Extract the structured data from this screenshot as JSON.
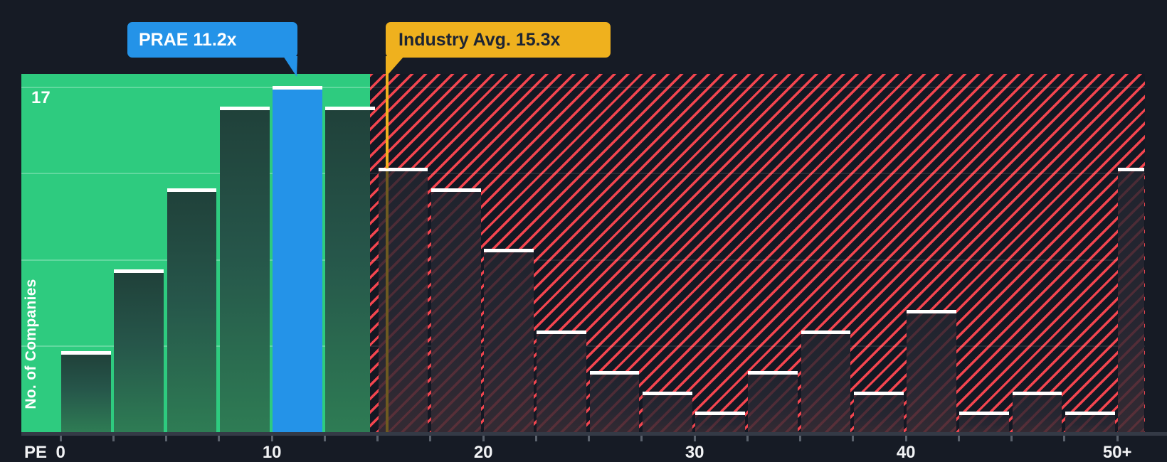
{
  "callouts": {
    "company_label": "PRAE 11.2x",
    "industry_label": "Industry Avg. 15.3x"
  },
  "y_axis": {
    "title": "No. of Companies",
    "max_tick_label": "17"
  },
  "x_axis": {
    "unit_label": "PE",
    "tick_labels": [
      "0",
      "10",
      "20",
      "30",
      "40",
      "50+"
    ]
  },
  "chart_data": {
    "type": "bar",
    "subtype": "histogram",
    "bin_width": 2.5,
    "bin_start": 0,
    "categories": [
      "0-2.5",
      "2.5-5",
      "5-7.5",
      "7.5-10",
      "10-12.5",
      "12.5-15",
      "15-17.5",
      "17.5-20",
      "20-22.5",
      "22.5-25",
      "25-27.5",
      "27.5-30",
      "30-32.5",
      "32.5-35",
      "35-37.5",
      "37.5-40",
      "40-42.5",
      "42.5-45",
      "45-47.5",
      "47.5-50",
      "50+"
    ],
    "values": [
      4,
      8,
      12,
      16,
      17,
      16,
      13,
      12,
      9,
      5,
      3,
      2,
      1,
      3,
      5,
      2,
      6,
      1,
      2,
      1,
      13
    ],
    "highlight_bar": {
      "category": "10-12.5",
      "index": 4,
      "label": "PRAE 11.2x",
      "pe_value": 11.2
    },
    "industry_avg": {
      "label": "Industry Avg. 15.3x",
      "pe_value": 15.3
    },
    "ylabel": "No. of Companies",
    "xlabel": "PE",
    "ylim": [
      0,
      17
    ],
    "y_max_label": "17",
    "x_tick_labels": [
      "0",
      "10",
      "20",
      "30",
      "40",
      "50+"
    ],
    "grid": "horizontal-faint",
    "legend": null,
    "regions": [
      {
        "name": "below-industry-average",
        "style": "solid-green",
        "x_range": [
          0,
          15
        ]
      },
      {
        "name": "above-industry-average",
        "style": "red-diagonal-hatch",
        "x_range": [
          15,
          "50+"
        ]
      }
    ]
  },
  "colors": {
    "background": "#161b25",
    "green": "#2ecb7f",
    "blue": "#2493e8",
    "amber": "#efb11e",
    "hatch_red": "#f3454f",
    "bar_top_line": "#ffffff"
  }
}
